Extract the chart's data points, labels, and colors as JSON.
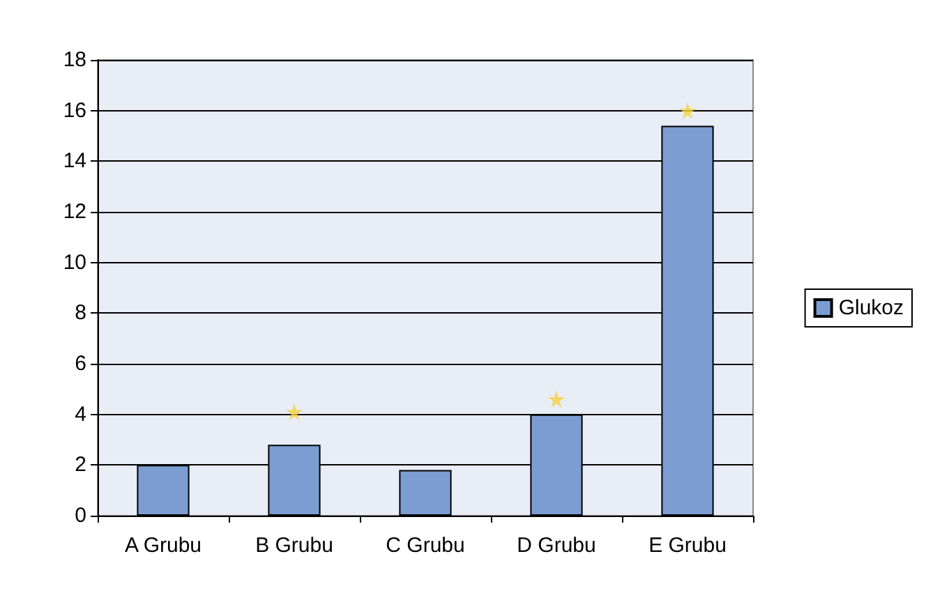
{
  "chart_data": {
    "type": "bar",
    "categories": [
      "A Grubu",
      "B Grubu",
      "C Grubu",
      "D Grubu",
      "E Grubu"
    ],
    "series": [
      {
        "name": "Glukoz",
        "color": "#7b9dd2",
        "values": [
          2.0,
          2.8,
          1.8,
          4.0,
          15.4
        ]
      },
      {
        "type": "scatter",
        "color": "#f5d23c",
        "x": [
          "B Grubu",
          "D Grubu",
          "E Grubu"
        ],
        "values": [
          4.1,
          4.6,
          16.0
        ],
        "marker": "star"
      }
    ],
    "ylim": [
      0,
      18
    ],
    "yticks": [
      0,
      2,
      4,
      6,
      8,
      10,
      12,
      14,
      16,
      18
    ],
    "grid": "y",
    "legend": "right"
  }
}
